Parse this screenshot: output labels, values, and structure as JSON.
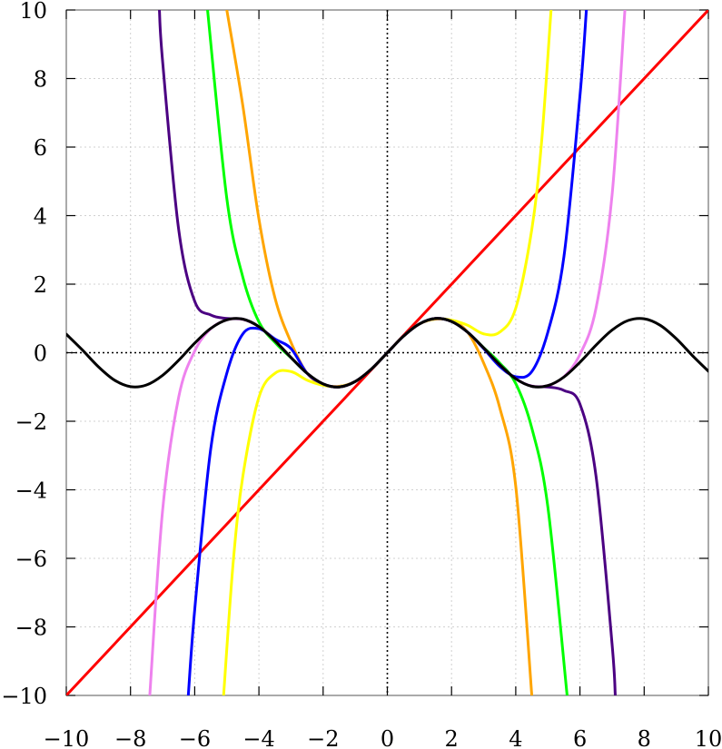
{
  "chart_data": {
    "type": "line",
    "title": "",
    "xlabel": "",
    "ylabel": "",
    "xlim": [
      -10,
      10
    ],
    "ylim": [
      -10,
      10
    ],
    "grid": true,
    "legend": "none",
    "x_ticks": [
      -10,
      -8,
      -6,
      -4,
      -2,
      0,
      2,
      4,
      6,
      8,
      10
    ],
    "y_ticks": [
      -10,
      -8,
      -6,
      -4,
      -2,
      0,
      2,
      4,
      6,
      8,
      10
    ],
    "x_tick_labels": [
      "−10",
      "−8",
      "−6",
      "−4",
      "−2",
      "0",
      "2",
      "4",
      "6",
      "8",
      "10"
    ],
    "y_tick_labels": [
      "−10",
      "−8",
      "−6",
      "−4",
      "−2",
      "0",
      "2",
      "4",
      "6",
      "8",
      "10"
    ],
    "series": [
      {
        "color": "#ff0000",
        "x": [
          -10,
          10
        ],
        "y": [
          -10,
          10
        ]
      },
      {
        "color": "#ffa500",
        "x": [
          -5,
          -4.5,
          -4,
          -3.5,
          -3,
          -2.5,
          -2,
          -1.5,
          -1,
          -0.5,
          0,
          0.5,
          1,
          1.5,
          2,
          2.5,
          3,
          3.5,
          4,
          4.5
        ],
        "y": [
          10,
          7.2,
          3.9,
          1.6,
          0.3,
          -0.6,
          -0.93,
          -0.98,
          -0.84,
          -0.48,
          0,
          0.48,
          0.84,
          0.98,
          0.93,
          0.6,
          -0.3,
          -1.6,
          -3.9,
          -10
        ]
      },
      {
        "color": "#ffff00",
        "x": [
          -5.1,
          -4.8,
          -4.5,
          -4,
          -3.5,
          -3,
          -2.5,
          -2,
          -1.5,
          -1,
          -0.5,
          0,
          0.5,
          1,
          1.5,
          2,
          2.5,
          3,
          3.5,
          4,
          4.5,
          4.8,
          5.1
        ],
        "y": [
          -10,
          -6.1,
          -3.6,
          -1.3,
          -0.6,
          -0.55,
          -0.8,
          -0.95,
          -0.99,
          -0.84,
          -0.48,
          0,
          0.48,
          0.84,
          0.99,
          0.95,
          0.8,
          0.55,
          0.6,
          1.3,
          3.6,
          6.1,
          10
        ]
      },
      {
        "color": "#00ff00",
        "x": [
          -5.6,
          -5,
          -4.5,
          -4,
          -3.5,
          -3,
          -2.5,
          -2,
          -1.5,
          -1,
          -0.5,
          0,
          0.5,
          1,
          1.5,
          2,
          2.5,
          3,
          3.5,
          4,
          4.5,
          5,
          5.6
        ],
        "y": [
          10,
          4.5,
          2.2,
          0.9,
          0.3,
          -0.15,
          -0.6,
          -0.91,
          -1.0,
          -0.84,
          -0.48,
          0,
          0.48,
          0.84,
          1.0,
          0.91,
          0.6,
          0.15,
          -0.3,
          -0.9,
          -2.2,
          -4.5,
          -10
        ]
      },
      {
        "color": "#0000ff",
        "x": [
          -6.2,
          -6,
          -5.5,
          -5,
          -4.5,
          -4,
          -3.5,
          -3,
          -2.5,
          -2,
          -1.5,
          -1,
          -0.5,
          0,
          0.5,
          1,
          1.5,
          2,
          2.5,
          3,
          3.5,
          4,
          4.5,
          5,
          5.5,
          6,
          6.2
        ],
        "y": [
          -10,
          -7.5,
          -2.8,
          -0.6,
          0.55,
          0.7,
          0.4,
          0.12,
          -0.6,
          -0.91,
          -1.0,
          -0.84,
          -0.48,
          0,
          0.48,
          0.84,
          1.0,
          0.91,
          0.6,
          0.12,
          -0.4,
          -0.7,
          -0.55,
          0.6,
          2.8,
          7.5,
          10
        ]
      },
      {
        "color": "#ee82ee",
        "x": [
          -7.4,
          -7,
          -6.5,
          -6,
          -5.5,
          -5,
          -4.5,
          -4,
          -3.5,
          -3,
          -2.5,
          -2,
          -1.5,
          -1,
          -0.5,
          0,
          0.5,
          1,
          1.5,
          2,
          2.5,
          3,
          3.5,
          4,
          4.5,
          5,
          5.5,
          6,
          6.5,
          7,
          7.4
        ],
        "y": [
          -10,
          -4.6,
          -1.3,
          0.05,
          0.7,
          0.96,
          0.97,
          0.76,
          0.35,
          -0.14,
          -0.6,
          -0.91,
          -1.0,
          -0.84,
          -0.48,
          0,
          0.48,
          0.84,
          1.0,
          0.91,
          0.6,
          0.14,
          -0.35,
          -0.76,
          -0.97,
          -0.96,
          -0.7,
          -0.05,
          1.3,
          4.6,
          10
        ]
      },
      {
        "color": "#4b0082",
        "x": [
          -7.1,
          -7,
          -6.5,
          -6,
          -5.5,
          -5,
          -4.5,
          -4,
          -3.5,
          -3,
          -2.5,
          -2,
          -1.5,
          -1,
          -0.5,
          0,
          0.5,
          1,
          1.5,
          2,
          2.5,
          3,
          3.5,
          4,
          4.5,
          5,
          5.5,
          6,
          6.5,
          7,
          7.1
        ],
        "y": [
          10,
          8.5,
          3.6,
          1.5,
          1.1,
          1.0,
          0.98,
          0.76,
          0.35,
          -0.14,
          -0.6,
          -0.91,
          -1.0,
          -0.84,
          -0.48,
          0,
          0.48,
          0.84,
          1.0,
          0.91,
          0.6,
          0.14,
          -0.35,
          -0.76,
          -0.98,
          -1.0,
          -1.1,
          -1.5,
          -3.6,
          -8.5,
          -10
        ]
      },
      {
        "color": "#000000",
        "x": [
          -10,
          -9.5,
          -9,
          -8.5,
          -8,
          -7.5,
          -7,
          -6.5,
          -6,
          -5.5,
          -5,
          -4.5,
          -4,
          -3.5,
          -3,
          -2.5,
          -2,
          -1.5,
          -1,
          -0.5,
          0,
          0.5,
          1,
          1.5,
          2,
          2.5,
          3,
          3.5,
          4,
          4.5,
          5,
          5.5,
          6,
          6.5,
          7,
          7.5,
          8,
          8.5,
          9,
          9.5,
          10
        ],
        "y": [
          0.54,
          0.08,
          -0.41,
          -0.8,
          -0.99,
          -0.94,
          -0.66,
          -0.22,
          0.28,
          0.71,
          0.96,
          0.98,
          0.76,
          0.35,
          -0.14,
          -0.6,
          -0.91,
          -1.0,
          -0.84,
          -0.48,
          0,
          0.48,
          0.84,
          1.0,
          0.91,
          0.6,
          0.14,
          -0.35,
          -0.76,
          -0.98,
          -0.96,
          -0.71,
          -0.28,
          0.22,
          0.66,
          0.94,
          0.99,
          0.8,
          0.41,
          -0.08,
          -0.54
        ]
      }
    ]
  }
}
